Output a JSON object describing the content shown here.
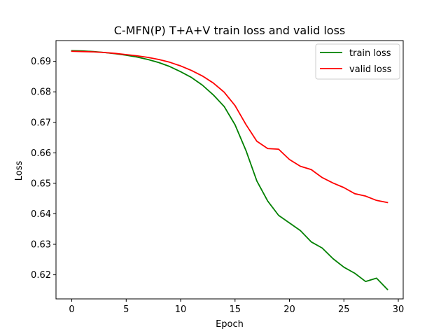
{
  "chart_data": {
    "type": "line",
    "title": "C-MFN(P) T+A+V train loss and valid loss",
    "xlabel": "Epoch",
    "ylabel": "Loss",
    "xlim": [
      -1.45,
      30.45
    ],
    "ylim": [
      0.6121,
      0.6968
    ],
    "xticks": [
      0,
      5,
      10,
      15,
      20,
      25,
      30
    ],
    "xtick_labels": [
      "0",
      "5",
      "10",
      "15",
      "20",
      "25",
      "30"
    ],
    "yticks": [
      0.62,
      0.63,
      0.64,
      0.65,
      0.66,
      0.67,
      0.68,
      0.69
    ],
    "ytick_labels": [
      "0.62",
      "0.63",
      "0.64",
      "0.65",
      "0.66",
      "0.67",
      "0.68",
      "0.69"
    ],
    "grid": false,
    "legend_position": "top-right",
    "x": [
      0,
      1,
      2,
      3,
      4,
      5,
      6,
      7,
      8,
      9,
      10,
      11,
      12,
      13,
      14,
      15,
      16,
      17,
      18,
      19,
      20,
      21,
      22,
      23,
      24,
      25,
      26,
      27,
      28,
      29
    ],
    "series": [
      {
        "name": "train loss",
        "color": "#008000",
        "values": [
          0.6935,
          0.6934,
          0.6932,
          0.6929,
          0.6925,
          0.692,
          0.6914,
          0.6906,
          0.6896,
          0.6883,
          0.6866,
          0.6847,
          0.6822,
          0.679,
          0.6752,
          0.6692,
          0.6608,
          0.6508,
          0.6442,
          0.6395,
          0.637,
          0.6345,
          0.6308,
          0.6288,
          0.6253,
          0.6225,
          0.6205,
          0.6178,
          0.6189,
          0.6152
        ]
      },
      {
        "name": "valid loss",
        "color": "#ff0000",
        "values": [
          0.6933,
          0.6932,
          0.6931,
          0.6929,
          0.6926,
          0.6922,
          0.6918,
          0.6913,
          0.6906,
          0.6897,
          0.6885,
          0.687,
          0.6852,
          0.6829,
          0.6799,
          0.6755,
          0.6693,
          0.6638,
          0.6614,
          0.6612,
          0.6578,
          0.6556,
          0.6545,
          0.6519,
          0.6501,
          0.6486,
          0.6466,
          0.6458,
          0.6444,
          0.6437
        ]
      }
    ]
  }
}
